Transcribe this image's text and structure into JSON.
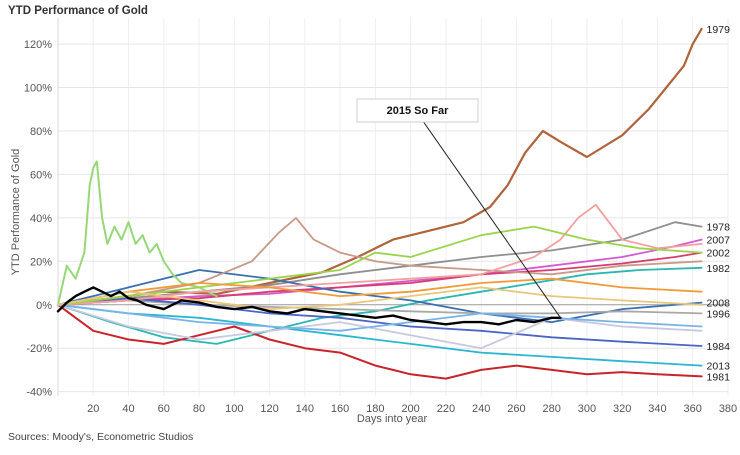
{
  "title": "YTD Performance of Gold",
  "source": "Sources: Moody's, Econometric Studios",
  "chart_data": {
    "type": "line",
    "title": "YTD Performance of Gold",
    "xlabel": "Days into year",
    "ylabel": "YTD Performance of Gold",
    "xlim": [
      0,
      380
    ],
    "ylim": [
      -42,
      132
    ],
    "x_ticks": [
      20,
      40,
      60,
      80,
      100,
      120,
      140,
      160,
      180,
      200,
      220,
      240,
      260,
      280,
      300,
      320,
      340,
      360,
      380
    ],
    "y_ticks": [
      -40,
      -20,
      0,
      20,
      40,
      60,
      80,
      100,
      120
    ],
    "y_tick_suffix": "%",
    "grid": true,
    "annotation": {
      "text": "2015 So Far",
      "points_to": [
        285,
        -6
      ]
    },
    "series": [
      {
        "name": "1979",
        "color": "#b0643c",
        "label_visible": true,
        "width": 2.2,
        "x": [
          0,
          30,
          60,
          90,
          120,
          150,
          170,
          190,
          210,
          230,
          245,
          255,
          265,
          275,
          285,
          300,
          320,
          335,
          345,
          355,
          360,
          365
        ],
        "y": [
          0,
          3,
          6,
          5,
          10,
          15,
          22,
          30,
          34,
          38,
          45,
          55,
          70,
          80,
          75,
          68,
          78,
          90,
          100,
          110,
          120,
          127
        ]
      },
      {
        "name": "1978",
        "color": "#8f8f8f",
        "label_visible": true,
        "x": [
          0,
          40,
          80,
          120,
          160,
          200,
          240,
          280,
          320,
          350,
          365
        ],
        "y": [
          0,
          3,
          6,
          9,
          14,
          18,
          22,
          25,
          30,
          38,
          36
        ]
      },
      {
        "name": "2007",
        "color": "#d45ad4",
        "label_visible": true,
        "x": [
          0,
          40,
          80,
          120,
          160,
          200,
          240,
          280,
          320,
          350,
          365
        ],
        "y": [
          0,
          2,
          4,
          5,
          8,
          11,
          14,
          18,
          22,
          27,
          30
        ]
      },
      {
        "name": "2002",
        "color": "#d63d6e",
        "label_visible": true,
        "x": [
          0,
          40,
          80,
          120,
          160,
          200,
          240,
          280,
          320,
          350,
          365
        ],
        "y": [
          0,
          2,
          3,
          6,
          8,
          10,
          14,
          16,
          19,
          22,
          24
        ]
      },
      {
        "name": "1982",
        "color": "#2bb8b0",
        "label_visible": true,
        "x": [
          0,
          30,
          60,
          90,
          120,
          150,
          180,
          210,
          240,
          270,
          300,
          330,
          365
        ],
        "y": [
          0,
          -8,
          -15,
          -18,
          -12,
          -6,
          -3,
          2,
          6,
          10,
          14,
          16,
          17
        ]
      },
      {
        "name": "2008",
        "color": "#3a6fb0",
        "label_visible": true,
        "x": [
          0,
          40,
          80,
          120,
          160,
          200,
          240,
          280,
          320,
          365
        ],
        "y": [
          0,
          8,
          16,
          12,
          6,
          2,
          -4,
          -8,
          -2,
          1
        ]
      },
      {
        "name": "1996",
        "color": "#a8a8a8",
        "label_visible": true,
        "x": [
          0,
          40,
          80,
          120,
          160,
          200,
          240,
          280,
          320,
          365
        ],
        "y": [
          0,
          2,
          0,
          -1,
          -2,
          -3,
          -4,
          -4,
          -3,
          -4
        ]
      },
      {
        "name": "1984",
        "color": "#4a64c8",
        "label_visible": true,
        "x": [
          0,
          40,
          80,
          120,
          160,
          200,
          240,
          280,
          320,
          365
        ],
        "y": [
          0,
          3,
          0,
          -4,
          -6,
          -10,
          -12,
          -15,
          -17,
          -19
        ]
      },
      {
        "name": "2013",
        "color": "#2bb6d0",
        "label_visible": true,
        "x": [
          0,
          40,
          80,
          120,
          160,
          200,
          240,
          280,
          320,
          365
        ],
        "y": [
          0,
          -4,
          -6,
          -10,
          -14,
          -18,
          -22,
          -24,
          -26,
          -28
        ]
      },
      {
        "name": "1981",
        "color": "#c8242a",
        "label_visible": true,
        "width": 2,
        "x": [
          0,
          20,
          40,
          60,
          80,
          100,
          120,
          140,
          160,
          180,
          190,
          200,
          220,
          240,
          260,
          280,
          300,
          320,
          340,
          365
        ],
        "y": [
          0,
          -12,
          -16,
          -18,
          -14,
          -10,
          -16,
          -20,
          -22,
          -28,
          -30,
          -32,
          -34,
          -30,
          -28,
          -30,
          -32,
          -31,
          -32,
          -33
        ]
      },
      {
        "name": "",
        "color": "#96d878",
        "label_visible": false,
        "width": 2,
        "x": [
          0,
          5,
          10,
          15,
          18,
          20,
          22,
          25,
          28,
          32,
          36,
          40,
          44,
          48,
          52,
          56,
          60,
          65,
          70,
          80,
          90
        ],
        "y": [
          0,
          18,
          12,
          24,
          55,
          63,
          66,
          40,
          28,
          36,
          30,
          38,
          28,
          32,
          24,
          28,
          20,
          14,
          10,
          8,
          4
        ]
      },
      {
        "name": "",
        "color": "#c89a8a",
        "label_visible": false,
        "x": [
          0,
          40,
          80,
          110,
          125,
          135,
          145,
          160,
          180,
          200,
          240,
          280,
          320,
          365
        ],
        "y": [
          0,
          4,
          10,
          20,
          33,
          40,
          30,
          24,
          20,
          18,
          16,
          14,
          18,
          20
        ]
      },
      {
        "name": "",
        "color": "#f4a0a0",
        "label_visible": false,
        "x": [
          0,
          40,
          80,
          120,
          160,
          200,
          240,
          270,
          285,
          295,
          305,
          320,
          340,
          365
        ],
        "y": [
          0,
          2,
          6,
          8,
          10,
          12,
          14,
          22,
          30,
          40,
          46,
          30,
          26,
          28
        ]
      },
      {
        "name": "",
        "color": "#9bd44a",
        "label_visible": false,
        "x": [
          0,
          40,
          80,
          120,
          160,
          180,
          200,
          240,
          270,
          300,
          330,
          365
        ],
        "y": [
          0,
          4,
          8,
          12,
          16,
          24,
          22,
          32,
          36,
          30,
          26,
          24
        ]
      },
      {
        "name": "",
        "color": "#c8c8e0",
        "label_visible": false,
        "x": [
          0,
          40,
          80,
          120,
          160,
          200,
          240,
          280,
          320,
          365
        ],
        "y": [
          0,
          -10,
          -16,
          -12,
          -8,
          -14,
          -20,
          -6,
          -10,
          -12
        ]
      },
      {
        "name": "",
        "color": "#f29a38",
        "label_visible": false,
        "x": [
          0,
          40,
          80,
          120,
          160,
          200,
          240,
          280,
          320,
          365
        ],
        "y": [
          0,
          6,
          10,
          8,
          4,
          6,
          10,
          12,
          8,
          6
        ]
      },
      {
        "name": "",
        "color": "#78b4e8",
        "label_visible": false,
        "x": [
          0,
          40,
          80,
          120,
          160,
          200,
          240,
          280,
          320,
          365
        ],
        "y": [
          0,
          -4,
          -8,
          -10,
          -12,
          -8,
          -4,
          -6,
          -8,
          -10
        ]
      },
      {
        "name": "",
        "color": "#e8c87a",
        "label_visible": false,
        "x": [
          0,
          40,
          80,
          120,
          160,
          200,
          240,
          280,
          320,
          365
        ],
        "y": [
          0,
          6,
          2,
          -2,
          0,
          4,
          8,
          4,
          2,
          0
        ]
      },
      {
        "name": "",
        "color": "#000000",
        "label_visible": false,
        "width": 2.4,
        "x": [
          0,
          5,
          10,
          15,
          20,
          25,
          30,
          35,
          40,
          45,
          50,
          55,
          60,
          70,
          80,
          90,
          100,
          110,
          120,
          130,
          140,
          150,
          160,
          170,
          180,
          190,
          200,
          210,
          220,
          230,
          240,
          250,
          260,
          270,
          280,
          285
        ],
        "y": [
          -3,
          1,
          4,
          6,
          8,
          6,
          4,
          6,
          3,
          2,
          0,
          -1,
          -2,
          2,
          1,
          -1,
          -2,
          -1,
          -3,
          -4,
          -2,
          -3,
          -4,
          -5,
          -6,
          -5,
          -7,
          -8,
          -9,
          -8,
          -8,
          -9,
          -7,
          -8,
          -6,
          -6
        ]
      }
    ]
  }
}
